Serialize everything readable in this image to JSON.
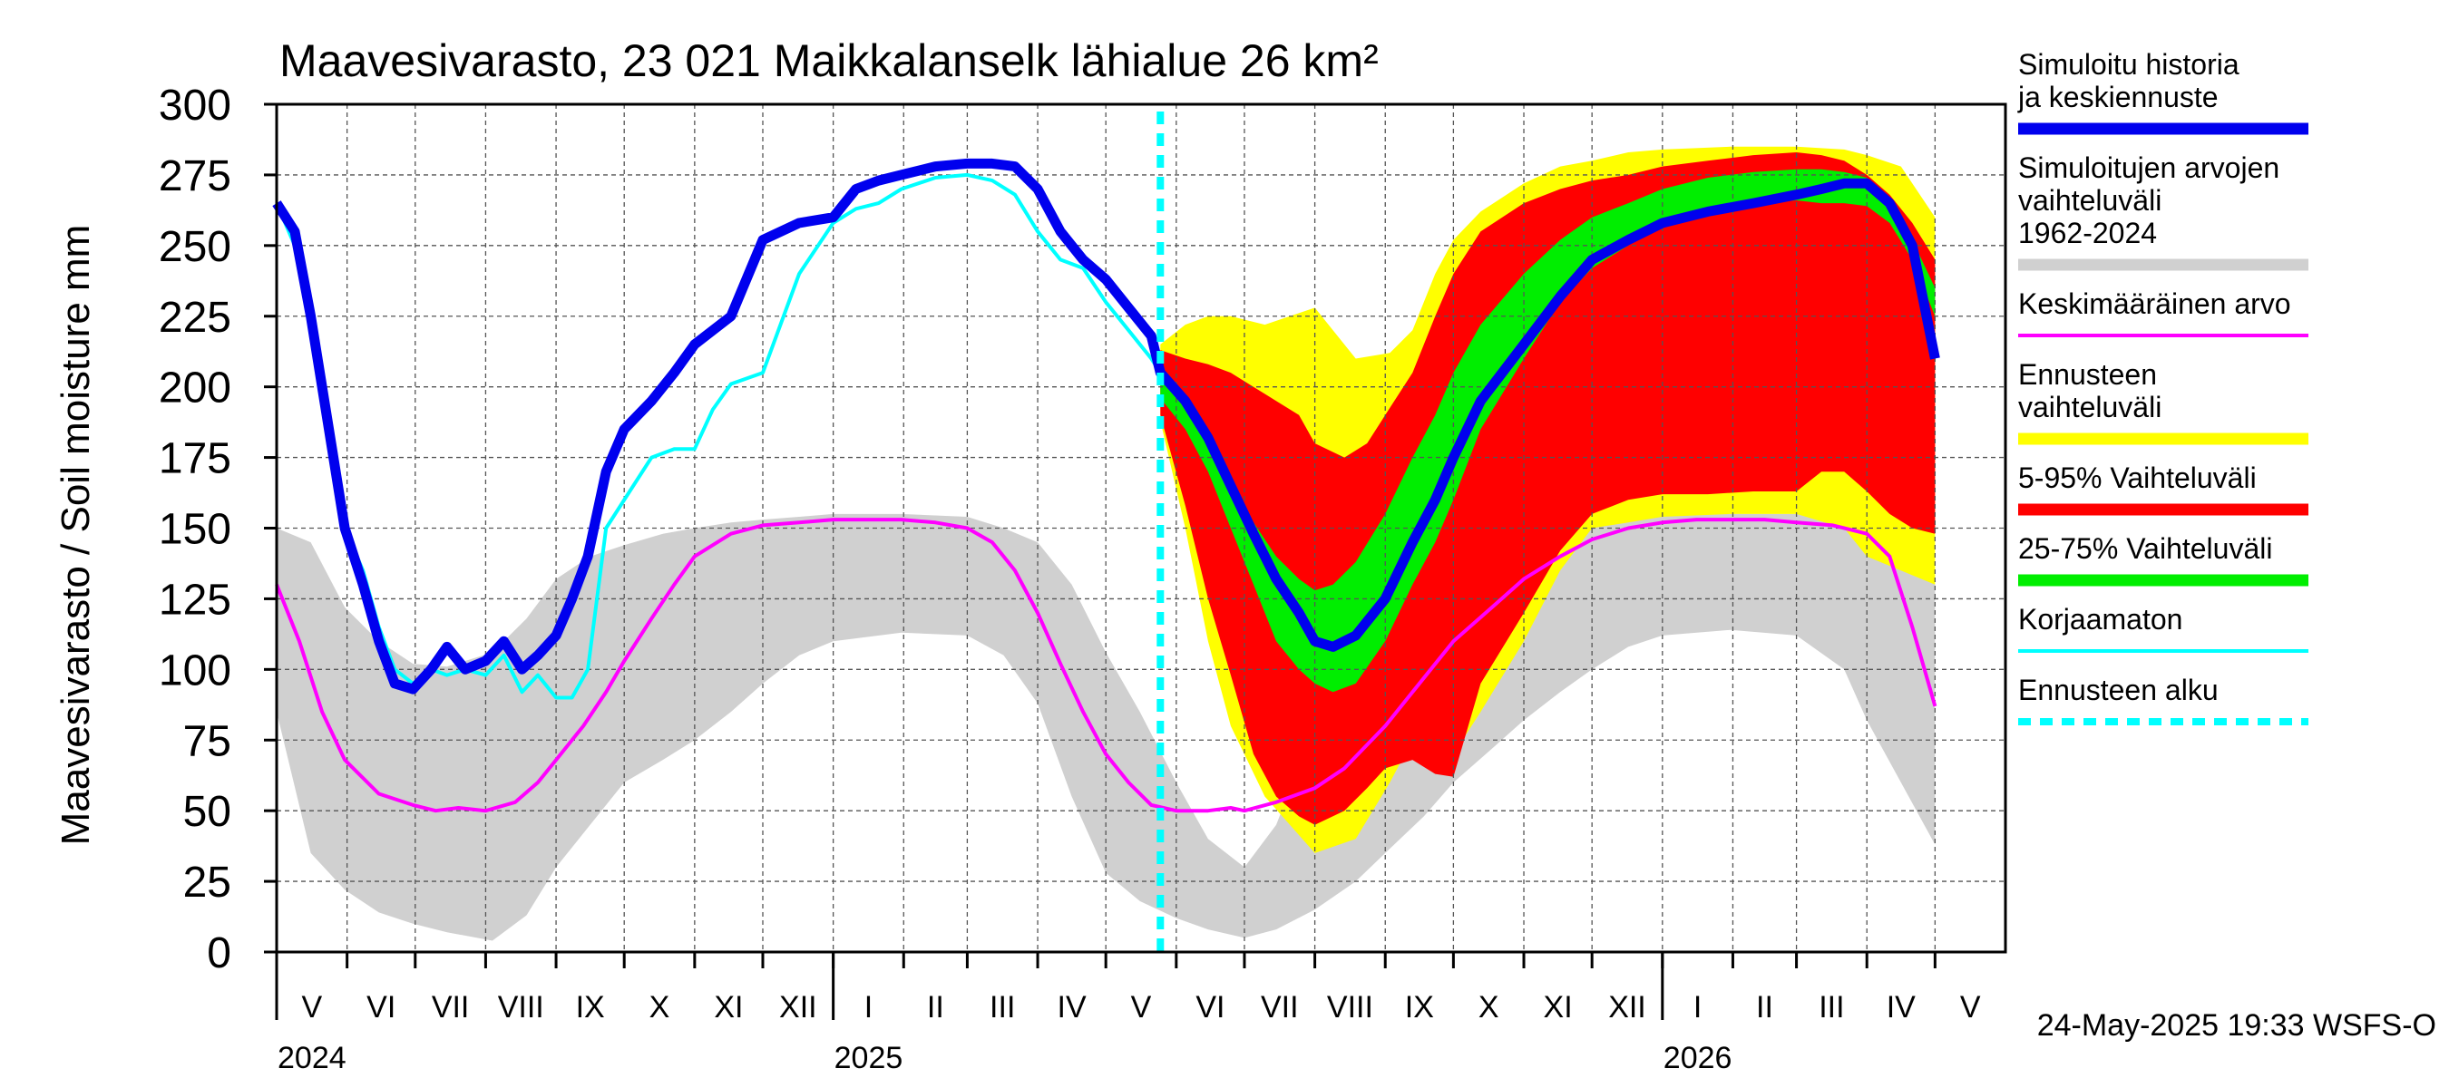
{
  "chart_data": {
    "type": "area",
    "title": "Maavesivarasto, 23 021 Maikkalanselk lähialue 26 km²",
    "ylabel": "Maavesivarasto / Soil moisture   mm",
    "ylim": [
      0,
      300
    ],
    "yticks": [
      0,
      25,
      50,
      75,
      100,
      125,
      150,
      175,
      200,
      225,
      250,
      275,
      300
    ],
    "x_start": "2024-04-30",
    "x_end": "2026-05-31",
    "forecast_start_day": 389,
    "months": [
      "V",
      "VI",
      "VII",
      "VIII",
      "IX",
      "X",
      "XI",
      "XII",
      "I",
      "II",
      "III",
      "IV",
      "V",
      "VI",
      "VII",
      "VIII",
      "IX",
      "X",
      "XI",
      "XII",
      "I",
      "II",
      "III",
      "IV",
      "V"
    ],
    "month_starts": [
      0,
      31,
      61,
      92,
      123,
      153,
      184,
      214,
      245,
      276,
      304,
      335,
      365,
      396,
      426,
      457,
      488,
      518,
      549,
      579,
      610,
      641,
      669,
      700,
      730
    ],
    "year_marks": [
      {
        "label": "2024",
        "day": 0
      },
      {
        "label": "2025",
        "day": 245
      },
      {
        "label": "2026",
        "day": 610
      }
    ],
    "timestamp": "24-May-2025 19:33 WSFS-O",
    "legend": [
      {
        "label": "Simuloitu historia ja keskiennuste",
        "color": "#0000ee",
        "style": "thick"
      },
      {
        "label": "Simuloitujen arvojen vaihteluväli 1962-2024",
        "color": "#d0d0d0",
        "style": "thick"
      },
      {
        "label": "Keskimääräinen arvo",
        "color": "#ff00ff",
        "style": "thin"
      },
      {
        "label": "Ennusteen vaihteluväli",
        "color": "#ffff00",
        "style": "thick"
      },
      {
        "label": "5-95% Vaihteluväli",
        "color": "#ff0000",
        "style": "thick"
      },
      {
        "label": "25-75% Vaihteluväli",
        "color": "#00ee00",
        "style": "thick"
      },
      {
        "label": "Korjaamaton",
        "color": "#00ffff",
        "style": "thin"
      },
      {
        "label": "Ennusteen alku",
        "color": "#00ffff",
        "style": "dashed"
      }
    ],
    "series": [
      {
        "name": "Simuloitujen arvojen vaihteluväli 1962-2024",
        "color": "#d0d0d0",
        "x": [
          0,
          15,
          30,
          45,
          60,
          75,
          95,
          110,
          123,
          138,
          153,
          170,
          184,
          200,
          214,
          230,
          245,
          275,
          304,
          320,
          335,
          350,
          365,
          380,
          396,
          410,
          426,
          440,
          457,
          475,
          488,
          505,
          518,
          535,
          549,
          565,
          579,
          595,
          610,
          640,
          669,
          690,
          700,
          715,
          730
        ],
        "low": [
          85,
          35,
          22,
          14,
          10,
          7,
          4,
          13,
          30,
          45,
          60,
          68,
          75,
          85,
          95,
          105,
          110,
          113,
          112,
          105,
          88,
          55,
          28,
          18,
          12,
          8,
          5,
          8,
          15,
          25,
          35,
          48,
          60,
          72,
          82,
          92,
          100,
          108,
          112,
          114,
          112,
          100,
          82,
          60,
          38
        ],
        "high": [
          150,
          145,
          122,
          110,
          102,
          101,
          106,
          118,
          132,
          140,
          144,
          148,
          150,
          152,
          153,
          154,
          155,
          155,
          154,
          150,
          145,
          130,
          106,
          85,
          60,
          40,
          30,
          45,
          80,
          110,
          130,
          140,
          148,
          152,
          154,
          155,
          155,
          155,
          155,
          155,
          155,
          152,
          145,
          140,
          130
        ]
      },
      {
        "name": "Ennusteen vaihteluväli",
        "color": "#ffff00",
        "x": [
          389,
          400,
          410,
          420,
          435,
          457,
          475,
          490,
          500,
          510,
          518,
          530,
          549,
          565,
          579,
          595,
          610,
          640,
          669,
          690,
          700,
          715,
          730
        ],
        "low": [
          188,
          150,
          110,
          80,
          55,
          35,
          40,
          60,
          75,
          80,
          70,
          85,
          110,
          135,
          150,
          152,
          154,
          155,
          155,
          150,
          140,
          135,
          130
        ],
        "high": [
          215,
          222,
          225,
          225,
          222,
          228,
          210,
          212,
          220,
          240,
          252,
          262,
          272,
          278,
          280,
          283,
          284,
          285,
          285,
          284,
          282,
          278,
          260
        ]
      },
      {
        "name": "5-95% Vaihteluväli",
        "color": "#ff0000",
        "x": [
          389,
          400,
          410,
          420,
          430,
          440,
          450,
          457,
          470,
          480,
          488,
          500,
          510,
          518,
          530,
          549,
          565,
          579,
          595,
          610,
          630,
          650,
          669,
          680,
          690,
          700,
          710,
          720,
          730
        ],
        "low": [
          190,
          158,
          125,
          98,
          70,
          55,
          48,
          45,
          50,
          58,
          65,
          68,
          63,
          62,
          95,
          120,
          142,
          155,
          160,
          162,
          162,
          163,
          163,
          170,
          170,
          163,
          155,
          150,
          148
        ],
        "high": [
          213,
          210,
          208,
          205,
          200,
          195,
          190,
          180,
          175,
          180,
          190,
          205,
          225,
          240,
          255,
          265,
          270,
          273,
          275,
          278,
          280,
          282,
          283,
          282,
          280,
          275,
          268,
          258,
          245
        ]
      },
      {
        "name": "25-75% Vaihteluväli",
        "color": "#00ee00",
        "x": [
          389,
          400,
          410,
          420,
          430,
          440,
          450,
          457,
          465,
          475,
          488,
          500,
          510,
          518,
          530,
          549,
          565,
          579,
          595,
          610,
          630,
          650,
          669,
          680,
          690,
          700,
          710,
          720,
          730
        ],
        "low": [
          196,
          185,
          170,
          150,
          130,
          110,
          100,
          95,
          92,
          95,
          110,
          130,
          145,
          160,
          185,
          210,
          230,
          242,
          250,
          258,
          263,
          265,
          266,
          265,
          265,
          264,
          258,
          245,
          225
        ],
        "high": [
          206,
          195,
          182,
          168,
          152,
          140,
          132,
          128,
          130,
          138,
          155,
          175,
          190,
          205,
          222,
          240,
          252,
          260,
          265,
          270,
          274,
          276,
          277,
          277,
          276,
          274,
          266,
          252,
          235
        ]
      },
      {
        "name": "Keskimääräinen arvo",
        "color": "#ff00ff",
        "x": [
          0,
          10,
          20,
          30,
          45,
          60,
          70,
          80,
          92,
          105,
          115,
          123,
          135,
          145,
          153,
          165,
          175,
          184,
          200,
          214,
          230,
          245,
          260,
          275,
          290,
          304,
          315,
          325,
          335,
          345,
          355,
          365,
          375,
          385,
          396,
          410,
          420,
          426,
          440,
          457,
          470,
          488,
          500,
          518,
          535,
          549,
          565,
          579,
          595,
          610,
          625,
          640,
          655,
          669,
          685,
          700,
          710,
          720,
          730
        ],
        "y": [
          130,
          110,
          85,
          68,
          56,
          52,
          50,
          51,
          50,
          53,
          60,
          68,
          80,
          92,
          103,
          118,
          130,
          140,
          148,
          151,
          152,
          153,
          153,
          153,
          152,
          150,
          145,
          135,
          120,
          102,
          85,
          70,
          60,
          52,
          50,
          50,
          51,
          50,
          53,
          58,
          65,
          80,
          92,
          110,
          122,
          132,
          140,
          146,
          150,
          152,
          153,
          153,
          153,
          152,
          151,
          148,
          140,
          115,
          87
        ]
      },
      {
        "name": "Korjaamaton",
        "color": "#00ffff",
        "x": [
          0,
          8,
          15,
          22,
          30,
          38,
          45,
          52,
          60,
          68,
          75,
          83,
          92,
          100,
          108,
          115,
          123,
          130,
          137,
          145,
          153,
          165,
          175,
          184,
          192,
          200,
          214,
          230,
          245,
          255,
          265,
          275,
          290,
          304,
          315,
          325,
          335,
          345,
          355,
          365,
          375,
          385,
          389
        ],
        "y": [
          265,
          250,
          220,
          190,
          150,
          135,
          115,
          100,
          95,
          100,
          98,
          100,
          98,
          105,
          92,
          98,
          90,
          90,
          100,
          150,
          160,
          175,
          178,
          178,
          192,
          201,
          205,
          240,
          258,
          263,
          265,
          270,
          274,
          275,
          273,
          268,
          255,
          245,
          242,
          230,
          220,
          210,
          205
        ]
      },
      {
        "name": "Simuloitu historia ja keskiennuste",
        "color": "#0000ee",
        "x": [
          0,
          8,
          15,
          22,
          30,
          38,
          45,
          52,
          60,
          68,
          75,
          83,
          92,
          100,
          108,
          115,
          123,
          130,
          137,
          145,
          153,
          165,
          175,
          184,
          192,
          200,
          214,
          230,
          245,
          255,
          265,
          275,
          290,
          304,
          315,
          325,
          335,
          345,
          355,
          365,
          375,
          385,
          389,
          400,
          410,
          420,
          430,
          440,
          450,
          457,
          465,
          475,
          488,
          500,
          510,
          518,
          530,
          549,
          565,
          579,
          595,
          610,
          630,
          650,
          669,
          680,
          690,
          700,
          710,
          720,
          730
        ],
        "y": [
          265,
          255,
          225,
          190,
          150,
          130,
          110,
          95,
          93,
          100,
          108,
          100,
          103,
          110,
          100,
          105,
          112,
          125,
          140,
          170,
          185,
          195,
          205,
          215,
          220,
          225,
          252,
          258,
          260,
          270,
          273,
          275,
          278,
          279,
          279,
          278,
          270,
          255,
          245,
          238,
          228,
          218,
          205,
          195,
          182,
          165,
          148,
          132,
          120,
          110,
          108,
          112,
          125,
          145,
          160,
          175,
          195,
          215,
          232,
          245,
          252,
          258,
          262,
          265,
          268,
          270,
          272,
          272,
          265,
          250,
          210
        ]
      }
    ]
  }
}
